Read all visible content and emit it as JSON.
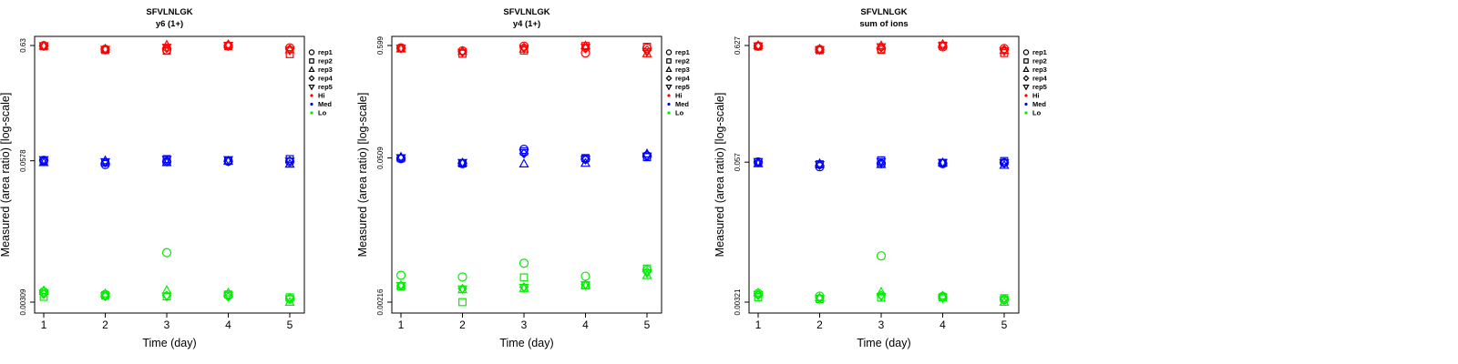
{
  "colors": {
    "Hi": "#ff0000",
    "Med": "#0000ff",
    "Lo": "#00ee00"
  },
  "legend": {
    "reps": [
      {
        "label": "rep1",
        "shape": "circle"
      },
      {
        "label": "rep2",
        "shape": "square"
      },
      {
        "label": "rep3",
        "shape": "triangle-up"
      },
      {
        "label": "rep4",
        "shape": "diamond"
      },
      {
        "label": "rep5",
        "shape": "triangle-down"
      }
    ],
    "levels": [
      {
        "label": "Hi",
        "color": "#ff0000"
      },
      {
        "label": "Med",
        "color": "#0000ff"
      },
      {
        "label": "Lo",
        "color": "#00ee00"
      }
    ]
  },
  "chart_data": [
    {
      "type": "scatter",
      "title": "SFVLNLGK",
      "subtitle": "y6 (1+)",
      "xlabel": "Time (day)",
      "ylabel": "Measured (area ratio) [log-scale]",
      "x_ticks": [
        1,
        2,
        3,
        4,
        5
      ],
      "y_scale": "log",
      "y_ticks": [
        0.00309,
        0.0578,
        0.63
      ],
      "y_tick_labels": [
        "0.00309",
        "0.0578",
        "0.63"
      ],
      "series": [
        {
          "level": "Hi",
          "rep": "rep1",
          "x": [
            1,
            2,
            3,
            4,
            5
          ],
          "y": [
            0.627,
            0.582,
            0.575,
            0.626,
            0.6
          ]
        },
        {
          "level": "Hi",
          "rep": "rep2",
          "x": [
            1,
            2,
            3,
            4,
            5
          ],
          "y": [
            0.621,
            0.574,
            0.565,
            0.622,
            0.527
          ]
        },
        {
          "level": "Hi",
          "rep": "rep3",
          "x": [
            1,
            2,
            3,
            4,
            5
          ],
          "y": [
            0.626,
            0.587,
            0.636,
            0.643,
            0.578
          ]
        },
        {
          "level": "Hi",
          "rep": "rep4",
          "x": [
            1,
            2,
            3,
            4,
            5
          ],
          "y": [
            0.622,
            0.581,
            0.595,
            0.624,
            0.585
          ]
        },
        {
          "level": "Hi",
          "rep": "rep5",
          "x": [
            1,
            2,
            3,
            4,
            5
          ],
          "y": [
            0.625,
            0.58,
            0.605,
            0.63,
            0.57
          ]
        },
        {
          "level": "Med",
          "rep": "rep1",
          "x": [
            1,
            2,
            3,
            4,
            5
          ],
          "y": [
            0.0583,
            0.0535,
            0.0568,
            0.0573,
            0.0568
          ]
        },
        {
          "level": "Med",
          "rep": "rep2",
          "x": [
            1,
            2,
            3,
            4,
            5
          ],
          "y": [
            0.0575,
            0.0558,
            0.0598,
            0.0578,
            0.0598
          ]
        },
        {
          "level": "Med",
          "rep": "rep3",
          "x": [
            1,
            2,
            3,
            4,
            5
          ],
          "y": [
            0.0558,
            0.058,
            0.0558,
            0.0575,
            0.054
          ]
        },
        {
          "level": "Med",
          "rep": "rep4",
          "x": [
            1,
            2,
            3,
            4,
            5
          ],
          "y": [
            0.0578,
            0.0555,
            0.057,
            0.057,
            0.0575
          ]
        },
        {
          "level": "Med",
          "rep": "rep5",
          "x": [
            1,
            2,
            3,
            4,
            5
          ],
          "y": [
            0.059,
            0.0565,
            0.0592,
            0.059,
            0.0572
          ]
        },
        {
          "level": "Lo",
          "rep": "rep1",
          "x": [
            1,
            2,
            3,
            4,
            5
          ],
          "y": [
            0.00382,
            0.00362,
            0.00862,
            0.00358,
            0.00329
          ]
        },
        {
          "level": "Lo",
          "rep": "rep2",
          "x": [
            1,
            2,
            3,
            4,
            5
          ],
          "y": [
            0.00345,
            0.00355,
            0.00348,
            0.00362,
            0.00341
          ]
        },
        {
          "level": "Lo",
          "rep": "rep3",
          "x": [
            1,
            2,
            3,
            4,
            5
          ],
          "y": [
            0.00392,
            0.00368,
            0.00395,
            0.00375,
            0.00309
          ]
        },
        {
          "level": "Lo",
          "rep": "rep4",
          "x": [
            1,
            2,
            3,
            4,
            5
          ],
          "y": [
            0.00365,
            0.00348,
            0.00355,
            0.00345,
            0.00338
          ]
        },
        {
          "level": "Lo",
          "rep": "rep5",
          "x": [
            1,
            2,
            3,
            4,
            5
          ],
          "y": [
            0.00372,
            0.00352,
            0.00348,
            0.00355,
            0.0033
          ]
        }
      ]
    },
    {
      "type": "scatter",
      "title": "SFVLNLGK",
      "subtitle": "y4 (1+)",
      "xlabel": "Time (day)",
      "ylabel": "Measured (area ratio) [log-scale]",
      "x_ticks": [
        1,
        2,
        3,
        4,
        5
      ],
      "y_scale": "log",
      "y_ticks": [
        0.00216,
        0.0509,
        0.599
      ],
      "y_tick_labels": [
        "0.00216",
        "0.0509",
        "0.599"
      ],
      "series": [
        {
          "level": "Hi",
          "rep": "rep1",
          "x": [
            1,
            2,
            3,
            4,
            5
          ],
          "y": [
            0.569,
            0.532,
            0.591,
            0.509,
            0.565
          ]
        },
        {
          "level": "Hi",
          "rep": "rep2",
          "x": [
            1,
            2,
            3,
            4,
            5
          ],
          "y": [
            0.561,
            0.5,
            0.537,
            0.592,
            0.582
          ]
        },
        {
          "level": "Hi",
          "rep": "rep3",
          "x": [
            1,
            2,
            3,
            4,
            5
          ],
          "y": [
            0.56,
            0.528,
            0.555,
            0.597,
            0.501
          ]
        },
        {
          "level": "Hi",
          "rep": "rep4",
          "x": [
            1,
            2,
            3,
            4,
            5
          ],
          "y": [
            0.563,
            0.52,
            0.575,
            0.56,
            0.54
          ]
        },
        {
          "level": "Hi",
          "rep": "rep5",
          "x": [
            1,
            2,
            3,
            4,
            5
          ],
          "y": [
            0.565,
            0.515,
            0.56,
            0.575,
            0.52
          ]
        },
        {
          "level": "Med",
          "rep": "rep1",
          "x": [
            1,
            2,
            3,
            4,
            5
          ],
          "y": [
            0.0502,
            0.045,
            0.0615,
            0.0498,
            0.0534
          ]
        },
        {
          "level": "Med",
          "rep": "rep2",
          "x": [
            1,
            2,
            3,
            4,
            5
          ],
          "y": [
            0.0506,
            0.0452,
            0.0587,
            0.0508,
            0.0518
          ]
        },
        {
          "level": "Med",
          "rep": "rep3",
          "x": [
            1,
            2,
            3,
            4,
            5
          ],
          "y": [
            0.052,
            0.0458,
            0.0448,
            0.0454,
            0.0558
          ]
        },
        {
          "level": "Med",
          "rep": "rep4",
          "x": [
            1,
            2,
            3,
            4,
            5
          ],
          "y": [
            0.0505,
            0.0455,
            0.056,
            0.049,
            0.054
          ]
        },
        {
          "level": "Med",
          "rep": "rep5",
          "x": [
            1,
            2,
            3,
            4,
            5
          ],
          "y": [
            0.051,
            0.046,
            0.057,
            0.0495,
            0.053
          ]
        },
        {
          "level": "Lo",
          "rep": "rep1",
          "x": [
            1,
            2,
            3,
            4,
            5
          ],
          "y": [
            0.00389,
            0.00375,
            0.00507,
            0.00381,
            0.00436
          ]
        },
        {
          "level": "Lo",
          "rep": "rep2",
          "x": [
            1,
            2,
            3,
            4,
            5
          ],
          "y": [
            0.00304,
            0.00216,
            0.00371,
            0.00311,
            0.00451
          ]
        },
        {
          "level": "Lo",
          "rep": "rep3",
          "x": [
            1,
            2,
            3,
            4,
            5
          ],
          "y": [
            0.00312,
            0.00284,
            0.00292,
            0.00312,
            0.00388
          ]
        },
        {
          "level": "Lo",
          "rep": "rep4",
          "x": [
            1,
            2,
            3,
            4,
            5
          ],
          "y": [
            0.00308,
            0.0029,
            0.003,
            0.0032,
            0.0042
          ]
        },
        {
          "level": "Lo",
          "rep": "rep5",
          "x": [
            1,
            2,
            3,
            4,
            5
          ],
          "y": [
            0.0031,
            0.00288,
            0.00298,
            0.00315,
            0.0041
          ]
        }
      ]
    },
    {
      "type": "scatter",
      "title": "SFVLNLGK",
      "subtitle": "sum of ions",
      "xlabel": "Time (day)",
      "ylabel": "Measured (area ratio) [log-scale]",
      "x_ticks": [
        1,
        2,
        3,
        4,
        5
      ],
      "y_scale": "log",
      "y_ticks": [
        0.00321,
        0.057,
        0.627
      ],
      "y_tick_labels": [
        "0.00321",
        "0.057",
        "0.627"
      ],
      "series": [
        {
          "level": "Hi",
          "rep": "rep1",
          "x": [
            1,
            2,
            3,
            4,
            5
          ],
          "y": [
            0.619,
            0.578,
            0.585,
            0.609,
            0.589
          ]
        },
        {
          "level": "Hi",
          "rep": "rep2",
          "x": [
            1,
            2,
            3,
            4,
            5
          ],
          "y": [
            0.616,
            0.57,
            0.574,
            0.625,
            0.537
          ]
        },
        {
          "level": "Hi",
          "rep": "rep3",
          "x": [
            1,
            2,
            3,
            4,
            5
          ],
          "y": [
            0.627,
            0.583,
            0.626,
            0.643,
            0.568
          ]
        },
        {
          "level": "Hi",
          "rep": "rep4",
          "x": [
            1,
            2,
            3,
            4,
            5
          ],
          "y": [
            0.618,
            0.575,
            0.6,
            0.62,
            0.575
          ]
        },
        {
          "level": "Hi",
          "rep": "rep5",
          "x": [
            1,
            2,
            3,
            4,
            5
          ],
          "y": [
            0.62,
            0.574,
            0.61,
            0.625,
            0.56
          ]
        },
        {
          "level": "Med",
          "rep": "rep1",
          "x": [
            1,
            2,
            3,
            4,
            5
          ],
          "y": [
            0.0572,
            0.0519,
            0.0553,
            0.0553,
            0.0563
          ]
        },
        {
          "level": "Med",
          "rep": "rep2",
          "x": [
            1,
            2,
            3,
            4,
            5
          ],
          "y": [
            0.0569,
            0.0545,
            0.0592,
            0.0562,
            0.0583
          ]
        },
        {
          "level": "Med",
          "rep": "rep3",
          "x": [
            1,
            2,
            3,
            4,
            5
          ],
          "y": [
            0.0553,
            0.0554,
            0.0545,
            0.0564,
            0.0535
          ]
        },
        {
          "level": "Med",
          "rep": "rep4",
          "x": [
            1,
            2,
            3,
            4,
            5
          ],
          "y": [
            0.0565,
            0.0535,
            0.056,
            0.0558,
            0.0565
          ]
        },
        {
          "level": "Med",
          "rep": "rep5",
          "x": [
            1,
            2,
            3,
            4,
            5
          ],
          "y": [
            0.0575,
            0.054,
            0.0575,
            0.0565,
            0.056
          ]
        },
        {
          "level": "Lo",
          "rep": "rep1",
          "x": [
            1,
            2,
            3,
            4,
            5
          ],
          "y": [
            0.00384,
            0.00363,
            0.0083,
            0.0036,
            0.00338
          ]
        },
        {
          "level": "Lo",
          "rep": "rep2",
          "x": [
            1,
            2,
            3,
            4,
            5
          ],
          "y": [
            0.00356,
            0.00342,
            0.00352,
            0.00355,
            0.00348
          ]
        },
        {
          "level": "Lo",
          "rep": "rep3",
          "x": [
            1,
            2,
            3,
            4,
            5
          ],
          "y": [
            0.00388,
            0.00352,
            0.00396,
            0.00365,
            0.00321
          ]
        },
        {
          "level": "Lo",
          "rep": "rep4",
          "x": [
            1,
            2,
            3,
            4,
            5
          ],
          "y": [
            0.0037,
            0.0035,
            0.0037,
            0.00355,
            0.0034
          ]
        },
        {
          "level": "Lo",
          "rep": "rep5",
          "x": [
            1,
            2,
            3,
            4,
            5
          ],
          "y": [
            0.00375,
            0.00345,
            0.0036,
            0.0035,
            0.00335
          ]
        }
      ]
    }
  ]
}
